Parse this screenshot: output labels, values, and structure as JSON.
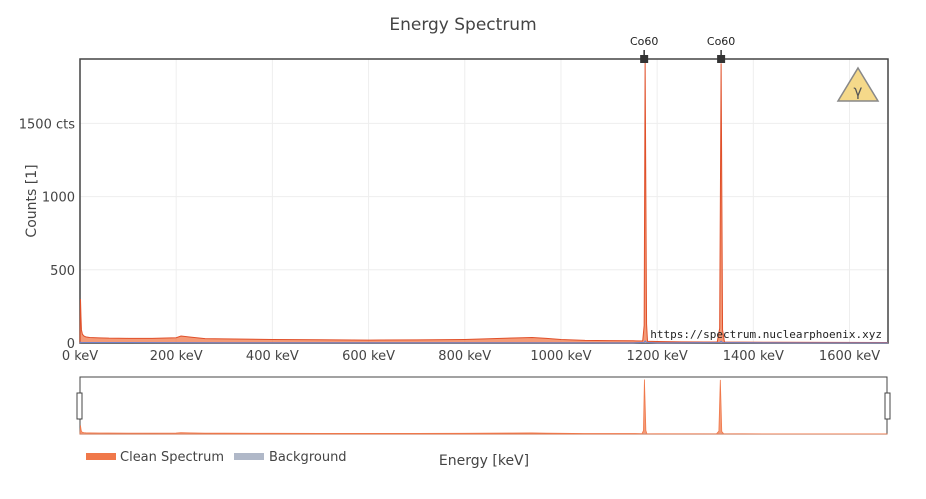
{
  "chart_data": {
    "type": "area",
    "title": "Energy Spectrum",
    "xlabel": "Energy [keV]",
    "ylabel": "Counts [1]",
    "xlim": [
      0,
      1680
    ],
    "ylim": [
      0,
      1940
    ],
    "x_ticks": [
      {
        "value": 0,
        "label": "0 keV"
      },
      {
        "value": 200,
        "label": "200 keV"
      },
      {
        "value": 400,
        "label": "400 keV"
      },
      {
        "value": 600,
        "label": "600 keV"
      },
      {
        "value": 800,
        "label": "800 keV"
      },
      {
        "value": 1000,
        "label": "1000 keV"
      },
      {
        "value": 1200,
        "label": "1200 keV"
      },
      {
        "value": 1400,
        "label": "1400 keV"
      },
      {
        "value": 1600,
        "label": "1600 keV"
      }
    ],
    "y_ticks": [
      {
        "value": 0,
        "label": "0"
      },
      {
        "value": 500,
        "label": "500"
      },
      {
        "value": 1000,
        "label": "1000"
      },
      {
        "value": 1500,
        "label": "1500 cts"
      }
    ],
    "grid": true,
    "legend_position": "bottom-left",
    "series": [
      {
        "name": "Clean Spectrum",
        "color": "#f0784a",
        "x": [
          0,
          1,
          2,
          3,
          5,
          8,
          12,
          20,
          40,
          60,
          100,
          150,
          200,
          210,
          230,
          260,
          300,
          400,
          500,
          600,
          700,
          800,
          900,
          940,
          970,
          1000,
          1050,
          1100,
          1150,
          1170,
          1173,
          1175,
          1178,
          1180,
          1200,
          1250,
          1300,
          1325,
          1330,
          1333,
          1336,
          1340,
          1380,
          1450,
          1550,
          1680
        ],
        "values": [
          0,
          300,
          180,
          90,
          60,
          48,
          42,
          38,
          35,
          33,
          32,
          32,
          36,
          48,
          40,
          30,
          28,
          24,
          22,
          20,
          21,
          24,
          34,
          38,
          32,
          24,
          18,
          16,
          15,
          14,
          120,
          1920,
          130,
          12,
          10,
          8,
          7,
          8,
          100,
          1910,
          90,
          7,
          6,
          5,
          4,
          3
        ]
      },
      {
        "name": "Background",
        "color": "#b0b8c8",
        "x": [
          0,
          1,
          2,
          10,
          100,
          300,
          600,
          900,
          1150,
          1173,
          1175,
          1178,
          1200,
          1330,
          1333,
          1336,
          1500,
          1680
        ],
        "values": [
          0,
          6,
          4,
          3,
          3,
          2,
          2,
          2,
          1,
          4,
          14,
          4,
          1,
          3,
          12,
          3,
          1,
          1
        ]
      }
    ],
    "annotations": [
      {
        "label": "Co60",
        "x": 1173
      },
      {
        "label": "Co60",
        "x": 1333
      }
    ],
    "watermark": "https://spectrum.nuclearphoenix.xyz",
    "logo_glyph": "γ"
  }
}
